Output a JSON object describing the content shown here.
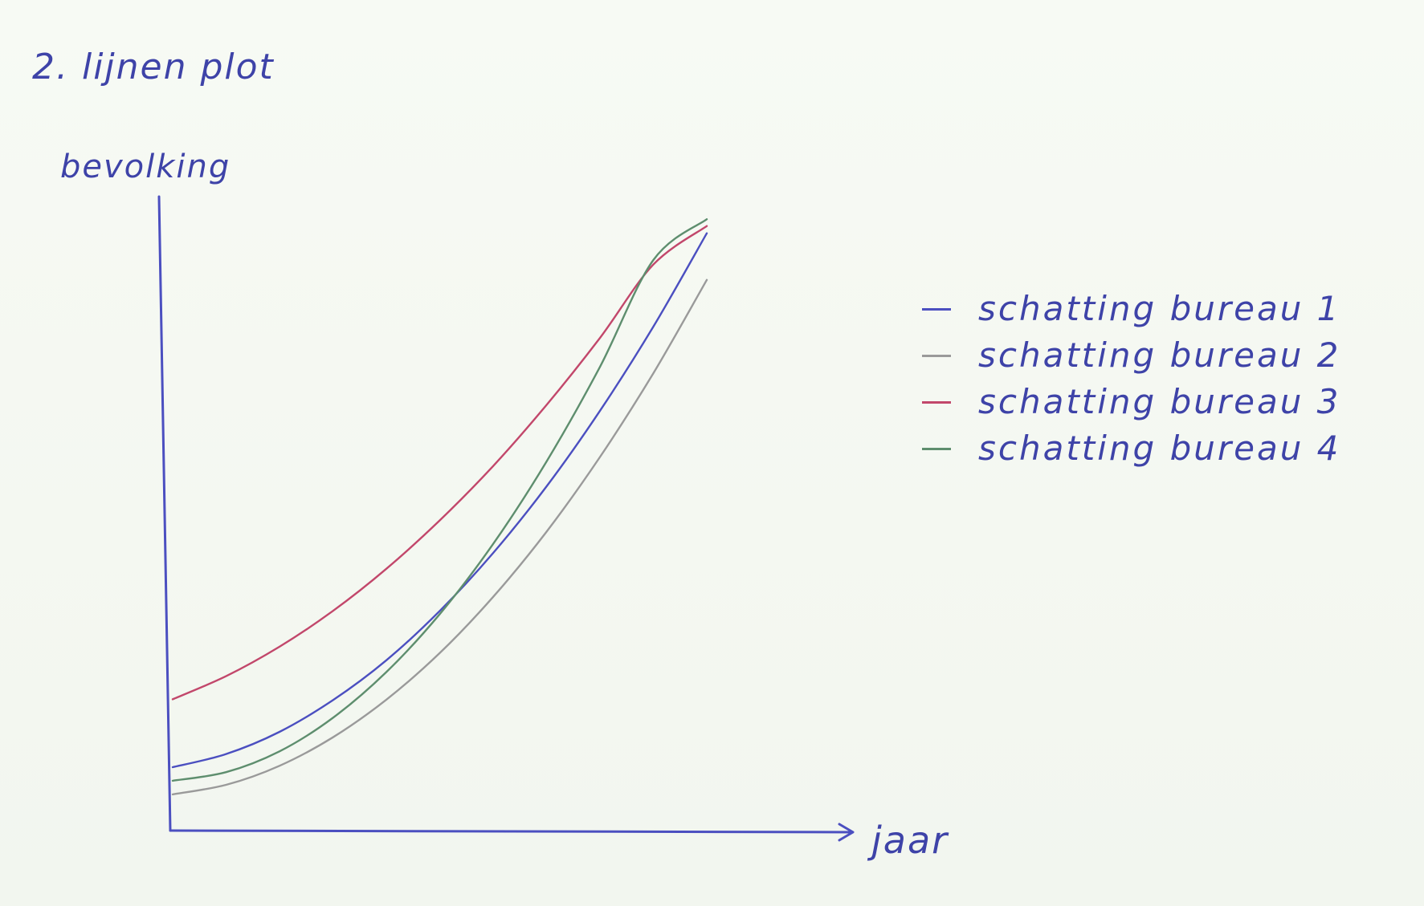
{
  "chart_data": {
    "type": "line",
    "title": "2. lijnen plot",
    "xlabel": "jaar",
    "ylabel": "bevolking",
    "grid": false,
    "legend_position": "right",
    "x": [
      0,
      1,
      2,
      3,
      4,
      5,
      6,
      7,
      8,
      9,
      10
    ],
    "series": [
      {
        "name": "schatting bureau 1",
        "color": "#4b4fc0",
        "values": [
          14,
          16.9,
          21.8,
          28.8,
          37.6,
          48.5,
          61.3,
          76.0,
          92.7,
          111.3,
          131.9
        ]
      },
      {
        "name": "schatting bureau 2",
        "color": "#9a9a9a",
        "values": [
          8,
          10.1,
          14.3,
          20.6,
          28.9,
          39.2,
          51.6,
          66.0,
          82.5,
          101.0,
          121.6
        ]
      },
      {
        "name": "schatting bureau 3",
        "color": "#c2476b",
        "values": [
          29,
          34.1,
          40.6,
          48.5,
          57.8,
          68.5,
          80.5,
          94.0,
          108.8,
          125.0,
          133.5
        ]
      },
      {
        "name": "schatting bureau 4",
        "color": "#5e8e6e",
        "values": [
          11,
          12.9,
          17.5,
          24.9,
          35.0,
          47.8,
          63.3,
          81.5,
          102.4,
          126.0,
          135.0
        ]
      }
    ],
    "xlim": [
      0,
      12
    ],
    "ylim": [
      0,
      140
    ]
  }
}
